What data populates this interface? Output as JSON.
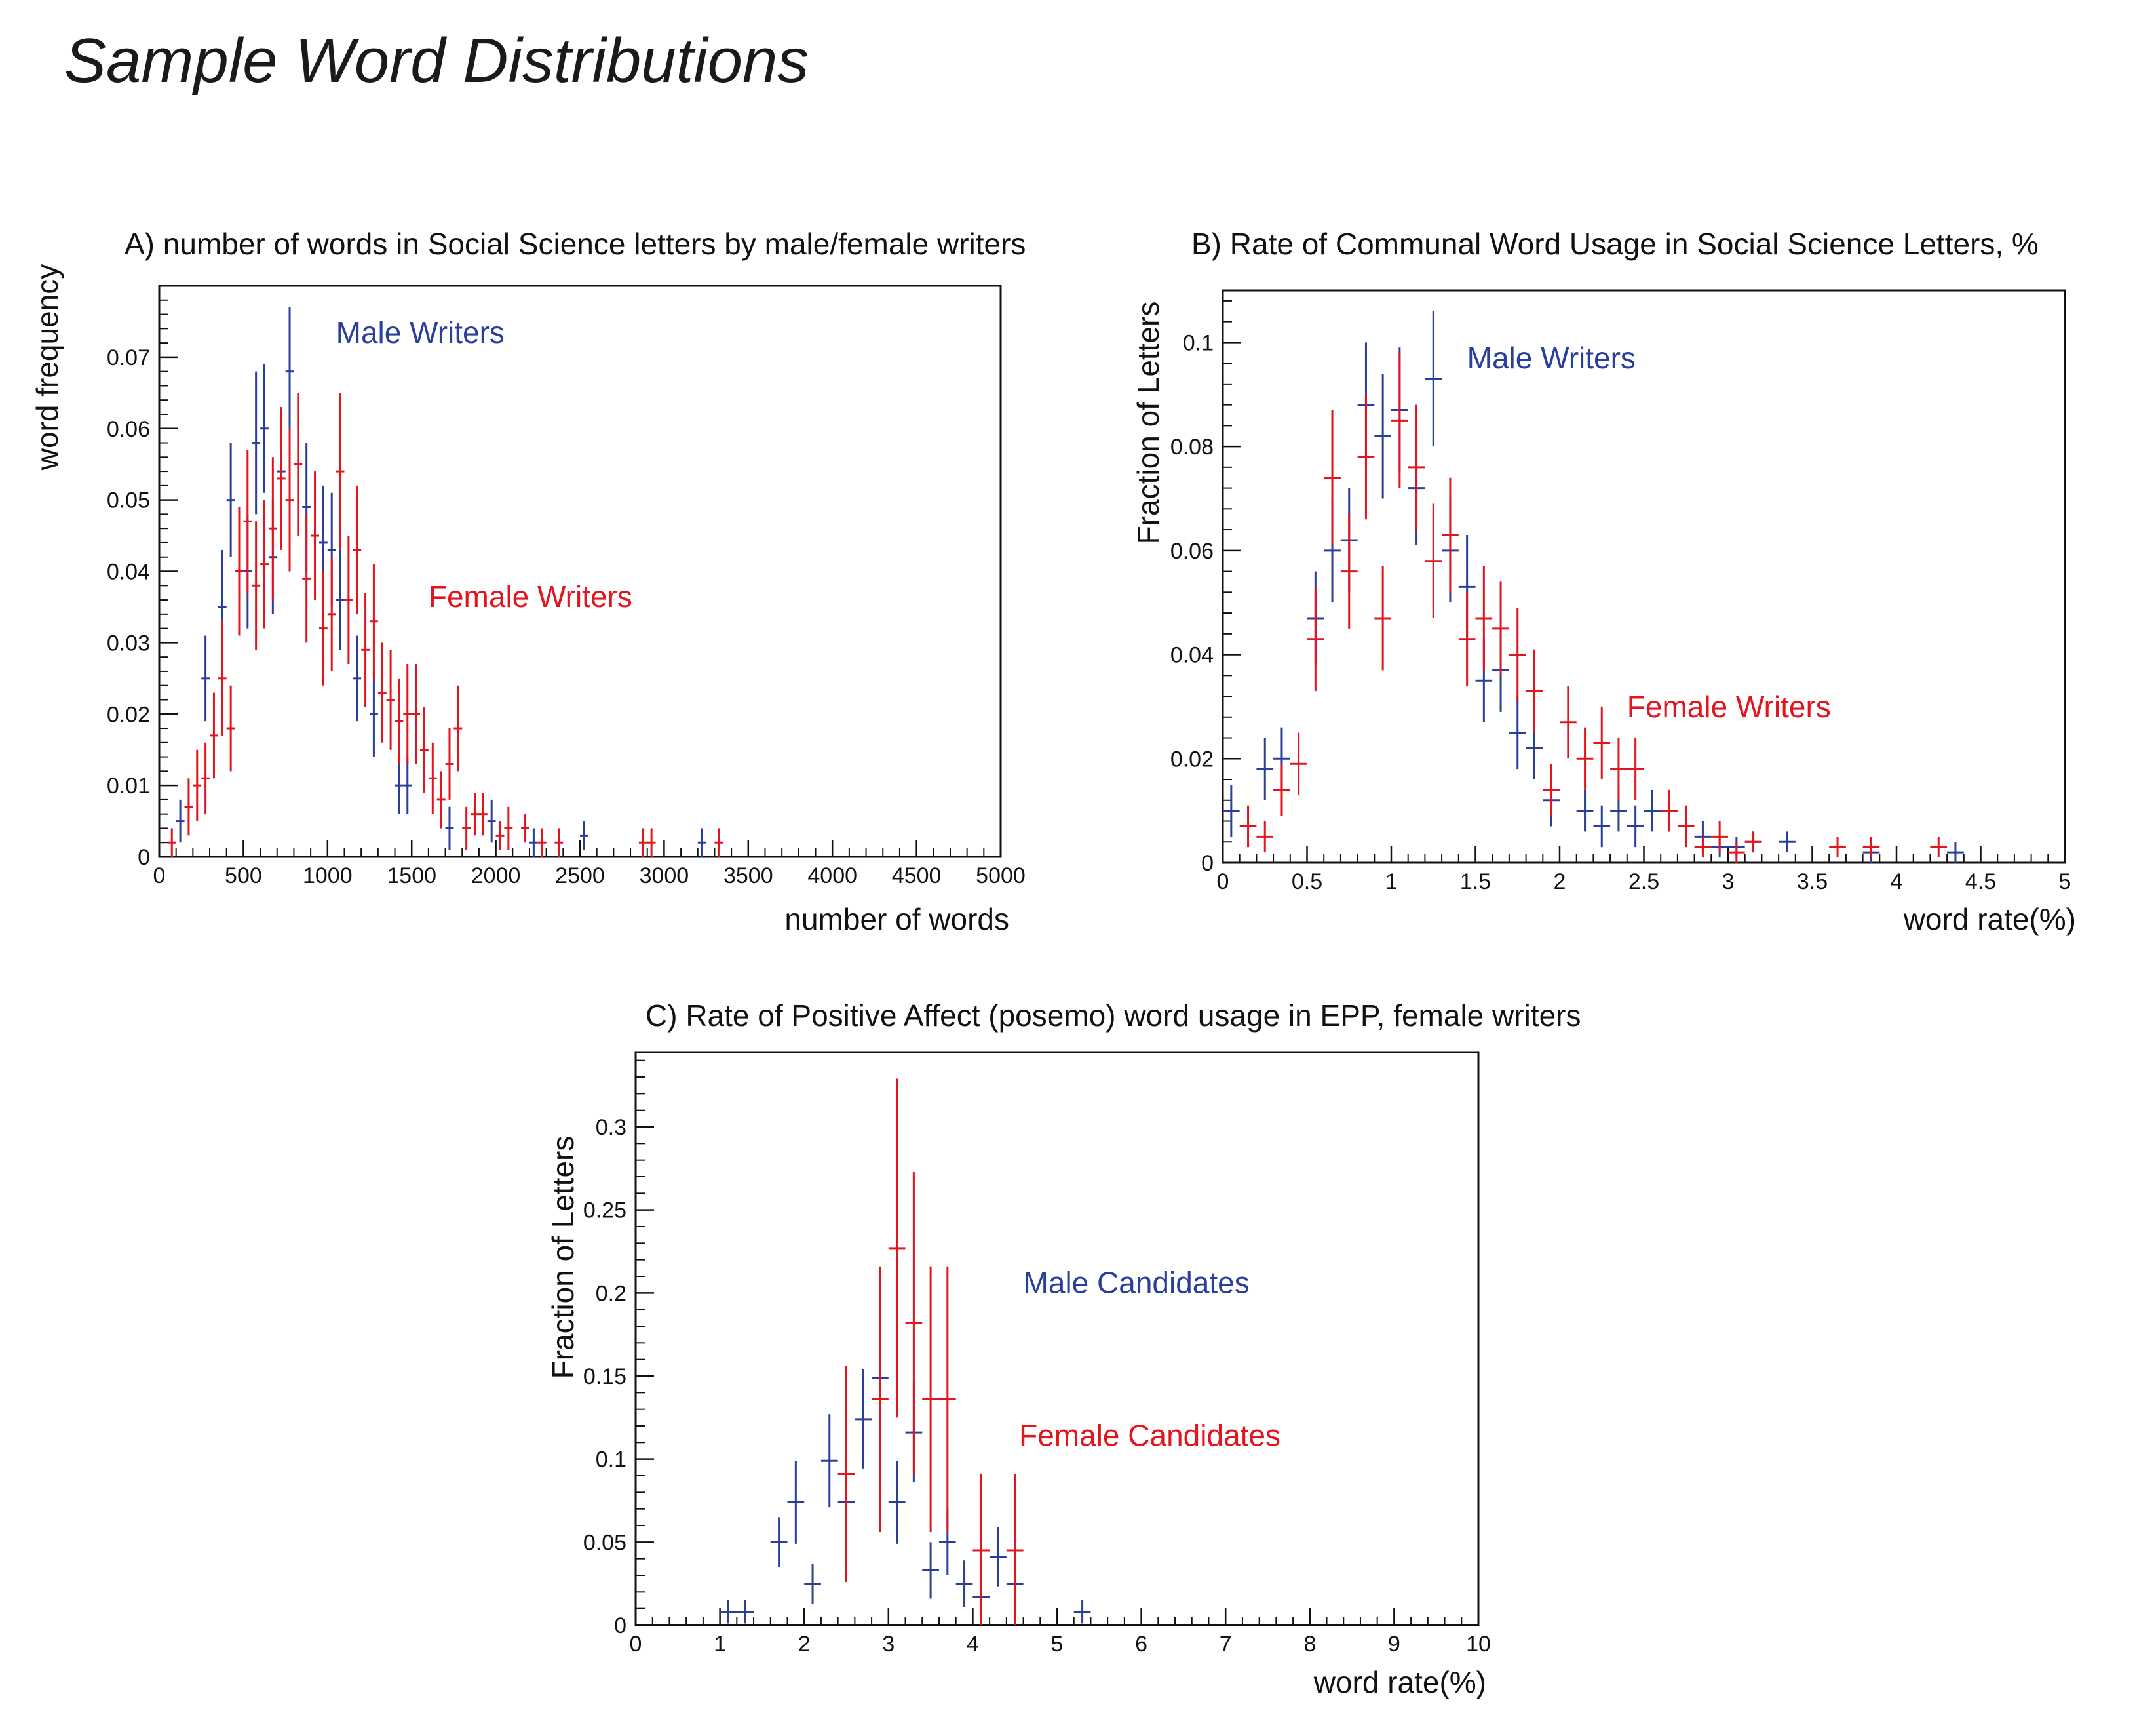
{
  "page": {
    "title": "Sample Word Distributions"
  },
  "colors": {
    "male": "#2a3f9a",
    "female": "#e3141d",
    "axis": "#111111"
  },
  "chart_data": [
    {
      "id": "A",
      "type": "scatter",
      "title": "A) number of words in Social Science letters by male/female writers",
      "xlabel": "number of words",
      "ylabel": "word frequency",
      "xlim": [
        0,
        5000
      ],
      "ylim": [
        0,
        0.08
      ],
      "xticks": [
        0,
        500,
        1000,
        1500,
        2000,
        2500,
        3000,
        3500,
        4000,
        4500,
        5000
      ],
      "xtick_labels": [
        "0",
        "500",
        "1000",
        "1500",
        "2000",
        "2500",
        "3000",
        "3500",
        "4000",
        "4500",
        "5000"
      ],
      "yticks": [
        0,
        0.01,
        0.02,
        0.03,
        0.04,
        0.05,
        0.06,
        0.07
      ],
      "ytick_labels": [
        "0",
        "0.01",
        "0.02",
        "0.03",
        "0.04",
        "0.05",
        "0.06",
        "0.07"
      ],
      "annotations": [
        {
          "text": "Male Writers",
          "series": "male",
          "x": 1050,
          "y": 0.072
        },
        {
          "text": "Female Writers",
          "series": "female",
          "x": 1600,
          "y": 0.035
        }
      ],
      "series": [
        {
          "name": "Male Writers",
          "color_key": "male",
          "xerr": 25,
          "points": [
            [
              125,
              0.005,
              0.003
            ],
            [
              275,
              0.025,
              0.006
            ],
            [
              375,
              0.035,
              0.008
            ],
            [
              425,
              0.05,
              0.008
            ],
            [
              525,
              0.04,
              0.008
            ],
            [
              575,
              0.058,
              0.01
            ],
            [
              625,
              0.06,
              0.009
            ],
            [
              675,
              0.042,
              0.008
            ],
            [
              725,
              0.054,
              0.009
            ],
            [
              775,
              0.068,
              0.009
            ],
            [
              875,
              0.049,
              0.009
            ],
            [
              975,
              0.044,
              0.008
            ],
            [
              1025,
              0.043,
              0.008
            ],
            [
              1075,
              0.036,
              0.007
            ],
            [
              1175,
              0.025,
              0.006
            ],
            [
              1275,
              0.02,
              0.006
            ],
            [
              1425,
              0.01,
              0.004
            ],
            [
              1475,
              0.01,
              0.004
            ],
            [
              1725,
              0.004,
              0.003
            ],
            [
              1975,
              0.005,
              0.003
            ],
            [
              2225,
              0.002,
              0.002
            ],
            [
              2525,
              0.003,
              0.002
            ],
            [
              3225,
              0.002,
              0.002
            ]
          ]
        },
        {
          "name": "Female Writers",
          "color_key": "female",
          "xerr": 25,
          "points": [
            [
              75,
              0.002,
              0.002
            ],
            [
              175,
              0.007,
              0.004
            ],
            [
              225,
              0.01,
              0.005
            ],
            [
              275,
              0.011,
              0.005
            ],
            [
              325,
              0.017,
              0.006
            ],
            [
              375,
              0.025,
              0.008
            ],
            [
              425,
              0.018,
              0.006
            ],
            [
              475,
              0.04,
              0.009
            ],
            [
              525,
              0.047,
              0.01
            ],
            [
              575,
              0.038,
              0.009
            ],
            [
              625,
              0.041,
              0.009
            ],
            [
              675,
              0.046,
              0.01
            ],
            [
              725,
              0.053,
              0.01
            ],
            [
              775,
              0.05,
              0.01
            ],
            [
              825,
              0.055,
              0.01
            ],
            [
              875,
              0.039,
              0.009
            ],
            [
              925,
              0.045,
              0.009
            ],
            [
              975,
              0.032,
              0.008
            ],
            [
              1025,
              0.034,
              0.008
            ],
            [
              1075,
              0.054,
              0.011
            ],
            [
              1125,
              0.036,
              0.009
            ],
            [
              1175,
              0.043,
              0.009
            ],
            [
              1225,
              0.029,
              0.008
            ],
            [
              1275,
              0.033,
              0.008
            ],
            [
              1325,
              0.023,
              0.007
            ],
            [
              1375,
              0.022,
              0.007
            ],
            [
              1425,
              0.019,
              0.006
            ],
            [
              1475,
              0.02,
              0.007
            ],
            [
              1525,
              0.02,
              0.007
            ],
            [
              1575,
              0.015,
              0.006
            ],
            [
              1625,
              0.011,
              0.005
            ],
            [
              1675,
              0.008,
              0.004
            ],
            [
              1725,
              0.013,
              0.005
            ],
            [
              1775,
              0.018,
              0.006
            ],
            [
              1825,
              0.004,
              0.003
            ],
            [
              1875,
              0.006,
              0.003
            ],
            [
              1925,
              0.006,
              0.003
            ],
            [
              2025,
              0.003,
              0.002
            ],
            [
              2075,
              0.004,
              0.003
            ],
            [
              2175,
              0.004,
              0.002
            ],
            [
              2275,
              0.002,
              0.002
            ],
            [
              2375,
              0.002,
              0.002
            ],
            [
              2875,
              0.002,
              0.002
            ],
            [
              2925,
              0.002,
              0.002
            ],
            [
              3325,
              0.002,
              0.002
            ]
          ]
        }
      ]
    },
    {
      "id": "B",
      "type": "scatter",
      "title": "B) Rate of Communal Word Usage in Social Science Letters, %",
      "xlabel": "word rate(%)",
      "ylabel": "Fraction of Letters",
      "xlim": [
        0,
        5
      ],
      "ylim": [
        0,
        0.11
      ],
      "xticks": [
        0,
        0.5,
        1,
        1.5,
        2,
        2.5,
        3,
        3.5,
        4,
        4.5,
        5
      ],
      "xtick_labels": [
        "0",
        "0.5",
        "1",
        "1.5",
        "2",
        "2.5",
        "3",
        "3.5",
        "4",
        "4.5",
        "5"
      ],
      "yticks": [
        0,
        0.02,
        0.04,
        0.06,
        0.08,
        0.1
      ],
      "ytick_labels": [
        "0",
        "0.02",
        "0.04",
        "0.06",
        "0.08",
        "0.1"
      ],
      "annotations": [
        {
          "text": "Male Writers",
          "series": "male",
          "x": 1.45,
          "y": 0.095
        },
        {
          "text": "Female Writers",
          "series": "female",
          "x": 2.4,
          "y": 0.028
        }
      ],
      "series": [
        {
          "name": "Male Writers",
          "color_key": "male",
          "xerr": 0.05,
          "points": [
            [
              0.05,
              0.01,
              0.005
            ],
            [
              0.25,
              0.018,
              0.006
            ],
            [
              0.35,
              0.02,
              0.006
            ],
            [
              0.55,
              0.047,
              0.009
            ],
            [
              0.65,
              0.06,
              0.01
            ],
            [
              0.75,
              0.062,
              0.01
            ],
            [
              0.85,
              0.088,
              0.012
            ],
            [
              0.95,
              0.082,
              0.012
            ],
            [
              1.05,
              0.087,
              0.012
            ],
            [
              1.15,
              0.072,
              0.011
            ],
            [
              1.25,
              0.093,
              0.013
            ],
            [
              1.35,
              0.06,
              0.01
            ],
            [
              1.45,
              0.053,
              0.01
            ],
            [
              1.55,
              0.035,
              0.008
            ],
            [
              1.65,
              0.037,
              0.008
            ],
            [
              1.75,
              0.025,
              0.007
            ],
            [
              1.85,
              0.022,
              0.006
            ],
            [
              1.95,
              0.012,
              0.005
            ],
            [
              2.15,
              0.01,
              0.004
            ],
            [
              2.25,
              0.007,
              0.004
            ],
            [
              2.35,
              0.01,
              0.004
            ],
            [
              2.45,
              0.007,
              0.004
            ],
            [
              2.55,
              0.01,
              0.004
            ],
            [
              2.65,
              0.01,
              0.004
            ],
            [
              2.85,
              0.005,
              0.003
            ],
            [
              2.95,
              0.003,
              0.002
            ],
            [
              3.05,
              0.003,
              0.002
            ],
            [
              3.15,
              0.004,
              0.002
            ],
            [
              3.35,
              0.004,
              0.002
            ],
            [
              3.85,
              0.002,
              0.002
            ],
            [
              4.35,
              0.002,
              0.002
            ]
          ]
        },
        {
          "name": "Female Writers",
          "color_key": "female",
          "xerr": 0.05,
          "points": [
            [
              0.15,
              0.007,
              0.004
            ],
            [
              0.25,
              0.005,
              0.003
            ],
            [
              0.35,
              0.014,
              0.005
            ],
            [
              0.45,
              0.019,
              0.006
            ],
            [
              0.55,
              0.043,
              0.01
            ],
            [
              0.65,
              0.074,
              0.013
            ],
            [
              0.75,
              0.056,
              0.011
            ],
            [
              0.85,
              0.078,
              0.012
            ],
            [
              0.95,
              0.047,
              0.01
            ],
            [
              1.05,
              0.085,
              0.013
            ],
            [
              1.15,
              0.076,
              0.012
            ],
            [
              1.25,
              0.058,
              0.011
            ],
            [
              1.35,
              0.063,
              0.011
            ],
            [
              1.45,
              0.043,
              0.009
            ],
            [
              1.55,
              0.047,
              0.01
            ],
            [
              1.65,
              0.045,
              0.009
            ],
            [
              1.75,
              0.04,
              0.009
            ],
            [
              1.85,
              0.033,
              0.008
            ],
            [
              1.95,
              0.014,
              0.005
            ],
            [
              2.05,
              0.027,
              0.007
            ],
            [
              2.15,
              0.02,
              0.006
            ],
            [
              2.25,
              0.023,
              0.007
            ],
            [
              2.35,
              0.018,
              0.006
            ],
            [
              2.45,
              0.018,
              0.006
            ],
            [
              2.65,
              0.01,
              0.004
            ],
            [
              2.75,
              0.007,
              0.004
            ],
            [
              2.85,
              0.003,
              0.002
            ],
            [
              2.95,
              0.005,
              0.003
            ],
            [
              3.05,
              0.002,
              0.002
            ],
            [
              3.15,
              0.004,
              0.002
            ],
            [
              3.65,
              0.003,
              0.002
            ],
            [
              3.85,
              0.003,
              0.002
            ],
            [
              4.25,
              0.003,
              0.002
            ]
          ]
        }
      ]
    },
    {
      "id": "C",
      "type": "scatter",
      "title": "C) Rate of Positive Affect (posemo) word usage in EPP, female writers",
      "xlabel": "word rate(%)",
      "ylabel": "Fraction of Letters",
      "xlim": [
        0,
        10
      ],
      "ylim": [
        0,
        0.345
      ],
      "xticks": [
        0,
        1,
        2,
        3,
        4,
        5,
        6,
        7,
        8,
        9,
        10
      ],
      "xtick_labels": [
        "0",
        "1",
        "2",
        "3",
        "4",
        "5",
        "6",
        "7",
        "8",
        "9",
        "10"
      ],
      "yticks": [
        0,
        0.05,
        0.1,
        0.15,
        0.2,
        0.25,
        0.3
      ],
      "ytick_labels": [
        "0",
        "0.05",
        "0.1",
        "0.15",
        "0.2",
        "0.25",
        "0.3"
      ],
      "annotations": [
        {
          "text": "Male Candidates",
          "series": "male",
          "x": 4.6,
          "y": 0.2
        },
        {
          "text": "Female Candidates",
          "series": "female",
          "x": 4.55,
          "y": 0.108
        }
      ],
      "series": [
        {
          "name": "Male Candidates",
          "color_key": "male",
          "xerr": 0.1,
          "points": [
            [
              1.1,
              0.008,
              0.007
            ],
            [
              1.3,
              0.008,
              0.007
            ],
            [
              1.7,
              0.05,
              0.015
            ],
            [
              1.9,
              0.074,
              0.025
            ],
            [
              2.1,
              0.025,
              0.012
            ],
            [
              2.3,
              0.099,
              0.028
            ],
            [
              2.5,
              0.074,
              0.025
            ],
            [
              2.7,
              0.124,
              0.03
            ],
            [
              2.9,
              0.149,
              0.033
            ],
            [
              3.1,
              0.074,
              0.025
            ],
            [
              3.3,
              0.116,
              0.03
            ],
            [
              3.5,
              0.033,
              0.017
            ],
            [
              3.7,
              0.05,
              0.02
            ],
            [
              3.9,
              0.025,
              0.014
            ],
            [
              4.1,
              0.017,
              0.012
            ],
            [
              4.3,
              0.041,
              0.018
            ],
            [
              4.5,
              0.025,
              0.014
            ],
            [
              5.3,
              0.008,
              0.007
            ]
          ]
        },
        {
          "name": "Female Candidates",
          "color_key": "female",
          "xerr": 0.1,
          "points": [
            [
              2.5,
              0.091,
              0.065
            ],
            [
              2.9,
              0.136,
              0.08
            ],
            [
              3.1,
              0.227,
              0.102
            ],
            [
              3.3,
              0.182,
              0.091
            ],
            [
              3.5,
              0.136,
              0.08
            ],
            [
              3.7,
              0.136,
              0.08
            ],
            [
              4.1,
              0.045,
              0.046
            ],
            [
              4.5,
              0.045,
              0.046
            ]
          ]
        }
      ]
    }
  ]
}
